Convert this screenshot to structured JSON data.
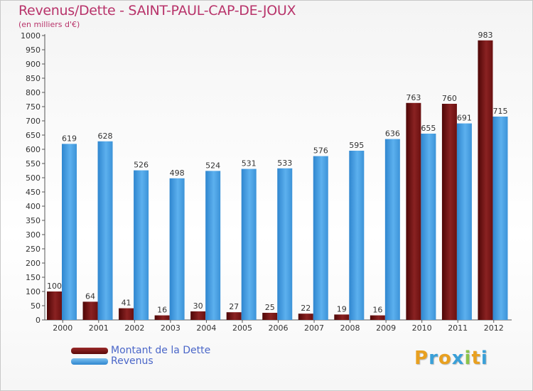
{
  "title": "Revenus/Dette - SAINT-PAUL-CAP-DE-JOUX",
  "subtitle": "(en milliers d'€)",
  "chart_data": {
    "type": "bar",
    "categories": [
      "2000",
      "2001",
      "2002",
      "2003",
      "2004",
      "2005",
      "2006",
      "2007",
      "2008",
      "2009",
      "2010",
      "2011",
      "2012"
    ],
    "series": [
      {
        "name": "Montant de la Dette",
        "color": "#7a1c1c",
        "values": [
          100,
          64,
          41,
          16,
          30,
          27,
          25,
          22,
          19,
          16,
          763,
          760,
          983
        ]
      },
      {
        "name": "Revenus",
        "color": "#4ea3e6",
        "values": [
          619,
          628,
          526,
          498,
          524,
          531,
          533,
          576,
          595,
          636,
          655,
          691,
          715
        ]
      }
    ],
    "ylim": [
      0,
      1000
    ],
    "ystep": 50,
    "grid": false,
    "legend": "bottom-left"
  },
  "legend": {
    "items": [
      {
        "label": "Montant de la Dette",
        "color": "#6a1010"
      },
      {
        "label": "Revenus",
        "color": "#4ea3e6"
      }
    ]
  },
  "logo": {
    "letters": [
      {
        "ch": "P",
        "color": "#e8a020"
      },
      {
        "ch": "r",
        "color": "#3aa0d8"
      },
      {
        "ch": "o",
        "color": "#e8a020"
      },
      {
        "ch": "x",
        "color": "#3aa0d8"
      },
      {
        "ch": "i",
        "color": "#8bc34a"
      },
      {
        "ch": "t",
        "color": "#e8a020"
      },
      {
        "ch": "i",
        "color": "#3aa0d8"
      }
    ]
  }
}
